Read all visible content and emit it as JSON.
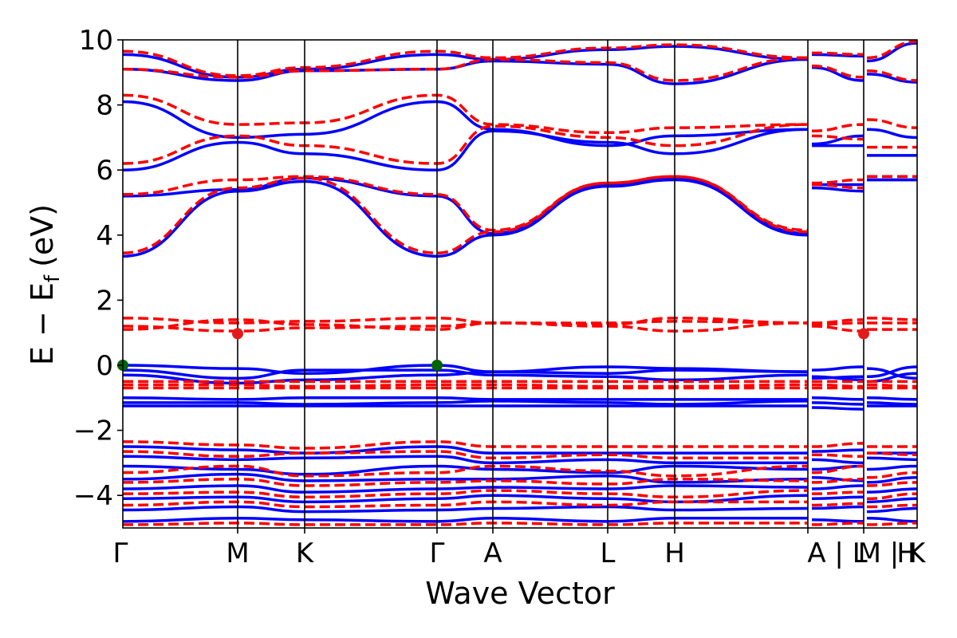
{
  "chart_data": {
    "type": "line",
    "title": "",
    "xlabel": "Wave Vector",
    "ylabel": "E − E",
    "ylabel_subscript": "f",
    "ylabel_unit": "(eV)",
    "ylim": [
      -5,
      10
    ],
    "y_ticks": [
      -4,
      -2,
      0,
      2,
      4,
      6,
      8,
      10
    ],
    "x_ticks": [
      "Γ",
      "M",
      "K",
      "Γ",
      "A",
      "L",
      "H",
      "A | L",
      "M | K",
      "H"
    ],
    "grid": false,
    "legend": "none",
    "colors": {
      "series_a": "#0000ff",
      "series_b": "#ff0000",
      "marker_a": "#006400",
      "marker_b": "#e31a1c"
    },
    "series": [
      {
        "style": "solid",
        "color": "#0000ff",
        "bands": [
          [
            3.35,
            5.35,
            5.65,
            3.35,
            4.0,
            5.5,
            5.7,
            4.0,
            null,
            5.45,
            5.35,
            null,
            5.7,
            5.7
          ],
          [
            5.2,
            5.4,
            5.75,
            5.2,
            4.05,
            5.55,
            5.75,
            4.05,
            null,
            5.55,
            5.55,
            null,
            5.7,
            5.7
          ],
          [
            6.0,
            6.85,
            6.5,
            6.0,
            7.2,
            6.85,
            6.5,
            7.25,
            null,
            6.75,
            6.75,
            null,
            6.45,
            6.45
          ],
          [
            8.1,
            7.0,
            7.1,
            8.1,
            7.25,
            6.75,
            7.05,
            7.25,
            null,
            6.8,
            7.05,
            null,
            7.25,
            7.0
          ],
          [
            9.1,
            8.75,
            9.05,
            9.1,
            9.35,
            9.25,
            8.65,
            9.4,
            null,
            9.15,
            8.75,
            null,
            8.95,
            8.7
          ],
          [
            9.55,
            8.85,
            9.1,
            9.55,
            9.4,
            9.7,
            9.8,
            9.4,
            null,
            9.55,
            9.5,
            null,
            9.35,
            9.9
          ],
          [
            0.0,
            -0.1,
            -0.25,
            0.0,
            -0.2,
            -0.05,
            -0.1,
            -0.2,
            null,
            -0.15,
            -0.05,
            null,
            -0.35,
            -0.05
          ],
          [
            -0.15,
            -0.4,
            -0.15,
            -0.15,
            -0.3,
            -0.35,
            -0.45,
            -0.3,
            null,
            -0.35,
            -0.45,
            null,
            -0.1,
            -0.4
          ],
          [
            -0.3,
            -0.55,
            -0.45,
            -0.3,
            -0.2,
            -0.25,
            -0.15,
            -0.2,
            null,
            -0.4,
            -0.35,
            null,
            -0.5,
            -0.25
          ],
          [
            -1.0,
            -1.05,
            -1.0,
            -1.0,
            -1.05,
            -1.05,
            -1.05,
            -1.05,
            null,
            -1.0,
            -1.05,
            null,
            -1.0,
            -1.05
          ],
          [
            -1.15,
            -1.15,
            -1.2,
            -1.15,
            -1.1,
            -1.15,
            -1.2,
            -1.1,
            null,
            -1.15,
            -1.2,
            null,
            -1.15,
            -1.2
          ],
          [
            -1.25,
            -1.25,
            -1.25,
            -1.25,
            -1.25,
            -1.25,
            -1.25,
            -1.25,
            null,
            -1.3,
            -1.35,
            null,
            -1.25,
            -1.25
          ],
          [
            -2.5,
            -2.6,
            -2.7,
            -2.5,
            -2.7,
            -2.7,
            -2.7,
            -2.7,
            null,
            -2.65,
            -2.6,
            null,
            -2.7,
            -2.7
          ],
          [
            -2.8,
            -2.9,
            -2.85,
            -2.8,
            -3.0,
            -2.9,
            -3.0,
            -3.0,
            null,
            -2.9,
            -3.0,
            null,
            -2.85,
            -2.9
          ],
          [
            -3.1,
            -3.2,
            -3.35,
            -3.1,
            -3.2,
            -3.3,
            -3.1,
            -3.2,
            null,
            -3.2,
            -3.1,
            null,
            -3.2,
            -3.1
          ],
          [
            -3.5,
            -3.35,
            -3.55,
            -3.5,
            -3.5,
            -3.4,
            -3.6,
            -3.5,
            null,
            -3.45,
            -3.55,
            null,
            -3.6,
            -3.45
          ],
          [
            -3.8,
            -3.7,
            -3.9,
            -3.8,
            -3.75,
            -3.8,
            -3.7,
            -3.75,
            null,
            -3.8,
            -3.7,
            null,
            -3.9,
            -3.8
          ],
          [
            -4.1,
            -4.05,
            -4.2,
            -4.1,
            -4.0,
            -4.1,
            -4.2,
            -4.0,
            null,
            -4.1,
            -4.05,
            null,
            -4.2,
            -4.1
          ],
          [
            -4.45,
            -4.35,
            -4.5,
            -4.45,
            -4.4,
            -4.35,
            -4.45,
            -4.4,
            null,
            -4.4,
            -4.35,
            null,
            -4.5,
            -4.4
          ],
          [
            -4.8,
            -4.7,
            -4.75,
            -4.8,
            -4.7,
            -4.8,
            -4.7,
            -4.7,
            null,
            -4.75,
            -4.8,
            null,
            -4.7,
            -4.8
          ]
        ]
      },
      {
        "style": "dashed",
        "color": "#ff0000",
        "bands": [
          [
            3.45,
            5.45,
            5.75,
            3.45,
            4.1,
            5.6,
            5.8,
            4.1,
            null,
            5.55,
            5.45,
            null,
            5.8,
            5.8
          ],
          [
            5.25,
            5.7,
            5.8,
            5.25,
            4.15,
            5.6,
            5.8,
            4.15,
            null,
            5.6,
            5.7,
            null,
            5.8,
            5.8
          ],
          [
            6.2,
            7.05,
            6.75,
            6.2,
            7.35,
            7.0,
            6.75,
            7.4,
            null,
            7.05,
            6.95,
            null,
            6.7,
            6.7
          ],
          [
            8.3,
            7.4,
            7.45,
            8.3,
            7.4,
            7.15,
            7.3,
            7.4,
            null,
            7.2,
            7.4,
            null,
            7.55,
            7.3
          ],
          [
            9.1,
            8.85,
            9.05,
            9.1,
            9.4,
            9.3,
            8.75,
            9.45,
            null,
            9.2,
            8.85,
            null,
            9.05,
            8.75
          ],
          [
            9.65,
            8.9,
            9.15,
            9.65,
            9.45,
            9.75,
            9.85,
            9.45,
            null,
            9.6,
            9.55,
            null,
            9.45,
            9.95
          ],
          [
            1.45,
            1.3,
            1.35,
            1.45,
            1.3,
            1.25,
            1.45,
            1.3,
            null,
            1.25,
            1.3,
            null,
            1.45,
            1.4
          ],
          [
            1.2,
            1.05,
            1.15,
            1.2,
            1.3,
            1.2,
            1.05,
            1.3,
            null,
            1.2,
            1.05,
            null,
            1.1,
            1.1
          ],
          [
            1.1,
            1.4,
            1.25,
            1.1,
            1.3,
            1.3,
            1.35,
            1.3,
            null,
            1.3,
            1.4,
            null,
            1.3,
            1.3
          ],
          [
            -0.5,
            -0.5,
            -0.5,
            -0.5,
            -0.5,
            -0.5,
            -0.5,
            -0.5,
            null,
            -0.5,
            -0.5,
            null,
            -0.5,
            -0.5
          ],
          [
            -0.6,
            -0.6,
            -0.65,
            -0.6,
            -0.6,
            -0.65,
            -0.65,
            -0.6,
            null,
            -0.6,
            -0.65,
            null,
            -0.6,
            -0.65
          ],
          [
            -0.7,
            -0.7,
            -0.7,
            -0.7,
            -0.7,
            -0.7,
            -0.7,
            -0.7,
            null,
            -0.7,
            -0.7,
            null,
            -0.7,
            -0.7
          ],
          [
            -2.35,
            -2.45,
            -2.55,
            -2.35,
            -2.5,
            -2.5,
            -2.5,
            -2.5,
            null,
            -2.5,
            -2.4,
            null,
            -2.5,
            -2.5
          ],
          [
            -2.65,
            -2.8,
            -2.7,
            -2.65,
            -2.85,
            -2.75,
            -2.85,
            -2.85,
            null,
            -2.75,
            -2.8,
            null,
            -2.7,
            -2.75
          ],
          [
            -3.3,
            -3.1,
            -3.4,
            -3.3,
            -3.1,
            -3.25,
            -3.4,
            -3.1,
            null,
            -3.3,
            -3.1,
            null,
            -3.45,
            -3.3
          ],
          [
            -3.6,
            -3.5,
            -3.7,
            -3.6,
            -3.55,
            -3.65,
            -3.5,
            -3.55,
            null,
            -3.6,
            -3.5,
            null,
            -3.7,
            -3.6
          ],
          [
            -3.95,
            -3.9,
            -4.05,
            -3.95,
            -3.85,
            -3.95,
            -4.05,
            -3.85,
            null,
            -3.95,
            -3.9,
            null,
            -4.1,
            -3.95
          ],
          [
            -4.3,
            -4.2,
            -4.35,
            -4.3,
            -4.2,
            -4.3,
            -4.2,
            -4.2,
            null,
            -4.3,
            -4.25,
            null,
            -4.35,
            -4.3
          ],
          [
            -4.9,
            -4.85,
            -4.9,
            -4.9,
            -4.85,
            -4.9,
            -4.85,
            -4.85,
            null,
            -4.9,
            -4.85,
            null,
            -4.9,
            -4.85
          ]
        ]
      }
    ],
    "markers": [
      {
        "x_index": 0,
        "y": 0.0,
        "color": "#006400"
      },
      {
        "x_index": 3,
        "y": 0.0,
        "color": "#006400"
      },
      {
        "x_index": 1,
        "y": 0.97,
        "color": "#e31a1c"
      },
      {
        "x_index": 10,
        "y": 0.97,
        "color": "#e31a1c"
      }
    ]
  }
}
